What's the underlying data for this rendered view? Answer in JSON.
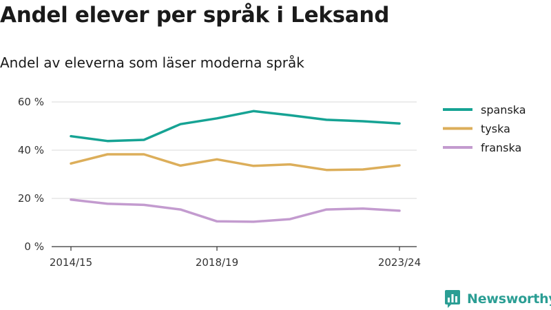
{
  "brand": {
    "name": "Newsworthy"
  },
  "chart_data": {
    "type": "line",
    "title": "Andel elever per språk i Leksand",
    "subtitle": "Andel av eleverna som läser moderna språk",
    "x": [
      "2014/15",
      "2015/16",
      "2016/17",
      "2017/18",
      "2018/19",
      "2019/20",
      "2020/21",
      "2021/22",
      "2022/23",
      "2023/24"
    ],
    "x_tick_labels": [
      "2014/15",
      "2018/19",
      "2023/24"
    ],
    "y_ticks": [
      0,
      20,
      40,
      60
    ],
    "y_tick_labels": [
      "0 %",
      "20 %",
      "40 %",
      "60 %"
    ],
    "ylim": [
      0,
      60
    ],
    "grid": true,
    "legend_position": "right",
    "series": [
      {
        "name": "spanska",
        "color": "#16a394",
        "values": [
          45.8,
          43.8,
          44.3,
          50.8,
          53.2,
          56.2,
          54.5,
          52.6,
          52.0,
          51.1
        ]
      },
      {
        "name": "tyska",
        "color": "#dcae5a",
        "values": [
          34.5,
          38.3,
          38.3,
          33.6,
          36.2,
          33.5,
          34.1,
          31.8,
          32.0,
          33.7
        ]
      },
      {
        "name": "franska",
        "color": "#c39bcf",
        "values": [
          19.5,
          17.8,
          17.3,
          15.4,
          10.5,
          10.3,
          11.4,
          15.4,
          15.8,
          14.9
        ]
      }
    ]
  }
}
